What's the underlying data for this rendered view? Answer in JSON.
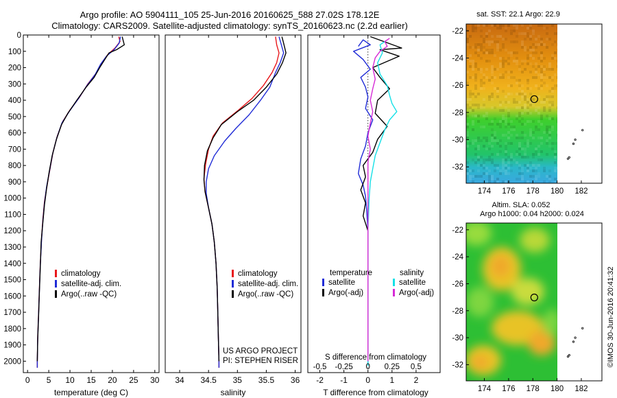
{
  "header": {
    "line1": "Argo profile: AO 5904111_105 25-Jun-2016 20160625_588 27.02S 178.12E",
    "line2": "Climatology: CARS2009. Satellite-adjusted climatology: synTS_20160623.nc (2.2d earlier)"
  },
  "credit": {
    "project": "US ARGO PROJECT",
    "pi": "PI: STEPHEN RISER",
    "imos": "©IMOS 30-Jun-2016 20:41:32"
  },
  "colors": {
    "climatology": "#e8161a",
    "satellite": "#1f2bd6",
    "argo": "#000000",
    "sal_satellite": "#13e0e6",
    "sal_argo": "#d62ad6"
  },
  "chart_data": [
    {
      "type": "line",
      "xlabel": "temperature (deg C)",
      "ylabel": "",
      "xlim": [
        -1,
        31
      ],
      "ylim": [
        2070,
        0
      ],
      "xticks": [
        0,
        5,
        10,
        15,
        20,
        25,
        30
      ],
      "yticks": [
        0,
        100,
        200,
        300,
        400,
        500,
        600,
        700,
        800,
        900,
        1000,
        1100,
        1200,
        1300,
        1400,
        1500,
        1600,
        1700,
        1800,
        1900,
        2000
      ],
      "legend": [
        "climatology",
        "satellite-adj. clim.",
        "Argo(..raw -QC)"
      ],
      "series": [
        {
          "name": "climatology",
          "color": "#e8161a",
          "points": [
            [
              21.5,
              10
            ],
            [
              21.8,
              40
            ],
            [
              20.6,
              80
            ],
            [
              18.9,
              120
            ],
            [
              17.5,
              170
            ],
            [
              16.3,
              230
            ],
            [
              14.2,
              300
            ],
            [
              12.3,
              380
            ],
            [
              10.0,
              460
            ],
            [
              8.3,
              530
            ],
            [
              7.0,
              620
            ],
            [
              6.0,
              720
            ],
            [
              5.3,
              820
            ],
            [
              4.6,
              920
            ],
            [
              4.0,
              1020
            ],
            [
              3.6,
              1130
            ],
            [
              3.3,
              1250
            ],
            [
              3.0,
              1400
            ],
            [
              2.8,
              1550
            ],
            [
              2.6,
              1700
            ],
            [
              2.4,
              1850
            ],
            [
              2.3,
              2000
            ],
            [
              2.3,
              2040
            ]
          ]
        },
        {
          "name": "satellite-adj. clim.",
          "color": "#1f2bd6",
          "points": [
            [
              21.9,
              10
            ],
            [
              21.6,
              50
            ],
            [
              20.4,
              90
            ],
            [
              18.6,
              130
            ],
            [
              17.2,
              180
            ],
            [
              16.0,
              240
            ],
            [
              14.0,
              310
            ],
            [
              12.0,
              390
            ],
            [
              9.8,
              470
            ],
            [
              8.1,
              540
            ],
            [
              6.9,
              630
            ],
            [
              5.9,
              730
            ],
            [
              5.2,
              830
            ],
            [
              4.5,
              930
            ],
            [
              4.0,
              1030
            ],
            [
              3.6,
              1140
            ],
            [
              3.3,
              1260
            ],
            [
              3.0,
              1410
            ],
            [
              2.8,
              1560
            ],
            [
              2.6,
              1710
            ],
            [
              2.4,
              1860
            ],
            [
              2.3,
              2000
            ],
            [
              2.3,
              2040
            ]
          ]
        },
        {
          "name": "Argo(..raw -QC)",
          "color": "#000000",
          "points": [
            [
              22.3,
              10
            ],
            [
              22.8,
              60
            ],
            [
              21.0,
              90
            ],
            [
              19.2,
              110
            ],
            [
              18.2,
              150
            ],
            [
              17.0,
              200
            ],
            [
              15.7,
              260
            ],
            [
              13.8,
              320
            ],
            [
              11.6,
              400
            ],
            [
              9.5,
              480
            ],
            [
              8.0,
              550
            ],
            [
              6.8,
              640
            ],
            [
              5.8,
              740
            ],
            [
              5.1,
              840
            ],
            [
              4.5,
              940
            ],
            [
              4.0,
              1040
            ],
            [
              3.6,
              1150
            ],
            [
              3.2,
              1270
            ],
            [
              3.0,
              1420
            ],
            [
              2.8,
              1570
            ],
            [
              2.6,
              1720
            ],
            [
              2.4,
              1870
            ],
            [
              2.3,
              2000
            ]
          ]
        }
      ]
    },
    {
      "type": "line",
      "xlabel": "salinity",
      "xlim": [
        33.75,
        36.1
      ],
      "ylim": [
        2070,
        0
      ],
      "xticks": [
        34,
        34.5,
        35,
        35.5,
        36
      ],
      "legend": [
        "climatology",
        "satellite-adj. clim.",
        "Argo(..raw -QC)"
      ],
      "series": [
        {
          "name": "climatology",
          "color": "#e8161a",
          "points": [
            [
              35.66,
              10
            ],
            [
              35.68,
              60
            ],
            [
              35.72,
              110
            ],
            [
              35.68,
              170
            ],
            [
              35.6,
              230
            ],
            [
              35.45,
              310
            ],
            [
              35.25,
              390
            ],
            [
              35.02,
              460
            ],
            [
              34.74,
              540
            ],
            [
              34.58,
              620
            ],
            [
              34.5,
              700
            ],
            [
              34.45,
              790
            ],
            [
              34.42,
              880
            ],
            [
              34.44,
              960
            ],
            [
              34.5,
              1060
            ],
            [
              34.56,
              1160
            ],
            [
              34.6,
              1270
            ],
            [
              34.63,
              1400
            ],
            [
              34.65,
              1550
            ],
            [
              34.66,
              1700
            ],
            [
              34.67,
              1850
            ],
            [
              34.68,
              2000
            ],
            [
              34.68,
              2040
            ]
          ]
        },
        {
          "name": "satellite-adj. clim.",
          "color": "#1f2bd6",
          "points": [
            [
              35.72,
              10
            ],
            [
              35.76,
              60
            ],
            [
              35.8,
              110
            ],
            [
              35.74,
              170
            ],
            [
              35.66,
              230
            ],
            [
              35.56,
              320
            ],
            [
              35.4,
              400
            ],
            [
              35.2,
              490
            ],
            [
              34.98,
              570
            ],
            [
              34.78,
              650
            ],
            [
              34.6,
              740
            ],
            [
              34.5,
              820
            ],
            [
              34.46,
              900
            ],
            [
              34.46,
              970
            ],
            [
              34.5,
              1060
            ],
            [
              34.56,
              1160
            ],
            [
              34.6,
              1270
            ],
            [
              34.63,
              1400
            ],
            [
              34.65,
              1550
            ],
            [
              34.66,
              1700
            ],
            [
              34.67,
              1850
            ],
            [
              34.68,
              2000
            ],
            [
              34.68,
              2040
            ]
          ]
        },
        {
          "name": "Argo(..raw -QC)",
          "color": "#000000",
          "points": [
            [
              35.77,
              10
            ],
            [
              35.8,
              50
            ],
            [
              35.84,
              110
            ],
            [
              35.78,
              170
            ],
            [
              35.68,
              240
            ],
            [
              35.5,
              320
            ],
            [
              35.28,
              400
            ],
            [
              35.0,
              470
            ],
            [
              34.72,
              550
            ],
            [
              34.58,
              630
            ],
            [
              34.48,
              710
            ],
            [
              34.43,
              800
            ],
            [
              34.42,
              890
            ],
            [
              34.44,
              960
            ],
            [
              34.5,
              1060
            ],
            [
              34.56,
              1160
            ],
            [
              34.6,
              1270
            ],
            [
              34.63,
              1400
            ],
            [
              34.65,
              1550
            ],
            [
              34.66,
              1700
            ],
            [
              34.67,
              1850
            ],
            [
              34.68,
              2000
            ]
          ]
        }
      ]
    },
    {
      "type": "line",
      "xlabel": "T difference from climatology",
      "top_label": "S difference from climatology",
      "xlim": [
        -2.5,
        3
      ],
      "ylim": [
        2070,
        0
      ],
      "xticks": [
        -2,
        -1,
        0,
        1,
        2
      ],
      "sticks_label": [
        "-0.5",
        "-0.25",
        "0",
        "0.25",
        "0.5"
      ],
      "sticks_at": [
        -2,
        -1,
        0,
        1,
        2
      ],
      "legend_groups": {
        "temperature": "temperature",
        "salinity": "salinity"
      },
      "legend": [
        "satellite",
        "Argo(-adj)",
        "satellite",
        "Argo(-adj)"
      ],
      "series": [
        {
          "name": "temperature satellite",
          "color": "#1f2bd6",
          "points": [
            [
              -0.4,
              70
            ],
            [
              -0.2,
              30
            ],
            [
              0.1,
              60
            ],
            [
              -0.6,
              100
            ],
            [
              -0.2,
              150
            ],
            [
              0.1,
              210
            ],
            [
              -0.3,
              260
            ],
            [
              -0.1,
              320
            ],
            [
              0.0,
              380
            ],
            [
              -0.1,
              450
            ],
            [
              0.2,
              520
            ],
            [
              0.0,
              600
            ],
            [
              -0.1,
              680
            ],
            [
              -0.3,
              760
            ],
            [
              -0.4,
              850
            ],
            [
              -0.2,
              920
            ],
            [
              -0.1,
              990
            ],
            [
              -0.05,
              1080
            ],
            [
              0,
              1200
            ],
            [
              0,
              1400
            ],
            [
              0,
              1700
            ],
            [
              0,
              2000
            ],
            [
              0,
              2030
            ]
          ]
        },
        {
          "name": "temperature Argo(-adj)",
          "color": "#000000",
          "points": [
            [
              0.1,
              10
            ],
            [
              1.4,
              80
            ],
            [
              0.5,
              90
            ],
            [
              1.3,
              130
            ],
            [
              0.2,
              200
            ],
            [
              0.5,
              260
            ],
            [
              0.9,
              330
            ],
            [
              0.4,
              400
            ],
            [
              0.3,
              480
            ],
            [
              0.8,
              560
            ],
            [
              0.4,
              640
            ],
            [
              0.2,
              720
            ],
            [
              -0.2,
              800
            ],
            [
              -0.1,
              870
            ],
            [
              -0.3,
              950
            ],
            [
              -0.1,
              1030
            ],
            [
              -0.2,
              1110
            ],
            [
              0,
              1200
            ],
            [
              0,
              1400
            ],
            [
              0,
              1700
            ],
            [
              0,
              2000
            ]
          ]
        },
        {
          "name": "salinity satellite",
          "color": "#13e0e6",
          "points": [
            [
              0.7,
              40
            ],
            [
              0.5,
              60
            ],
            [
              0.6,
              110
            ],
            [
              0.4,
              170
            ],
            [
              0.5,
              240
            ],
            [
              0.8,
              310
            ],
            [
              0.9,
              370
            ],
            [
              1.0,
              420
            ],
            [
              1.2,
              470
            ],
            [
              0.9,
              520
            ],
            [
              0.7,
              580
            ],
            [
              0.5,
              660
            ],
            [
              0.3,
              740
            ],
            [
              0.2,
              820
            ],
            [
              0.1,
              900
            ],
            [
              0.05,
              1000
            ],
            [
              0,
              1200
            ],
            [
              0,
              1500
            ],
            [
              0,
              1800
            ],
            [
              0,
              2000
            ],
            [
              0,
              2030
            ]
          ]
        },
        {
          "name": "salinity Argo(-adj)",
          "color": "#d62ad6",
          "points": [
            [
              0.9,
              20
            ],
            [
              0.7,
              40
            ],
            [
              0.8,
              70
            ],
            [
              0.5,
              100
            ],
            [
              0.3,
              140
            ],
            [
              0.2,
              200
            ],
            [
              0.3,
              270
            ],
            [
              0.2,
              330
            ],
            [
              0.1,
              400
            ],
            [
              0.2,
              470
            ],
            [
              0.1,
              540
            ],
            [
              0.0,
              620
            ],
            [
              0.1,
              700
            ],
            [
              0.0,
              780
            ],
            [
              0.0,
              860
            ],
            [
              0.0,
              960
            ],
            [
              0,
              1100
            ],
            [
              0,
              1400
            ],
            [
              0,
              1800
            ],
            [
              0,
              2000
            ]
          ]
        }
      ]
    },
    {
      "type": "heatmap",
      "title": "sat. SST: 22.1  Argo: 22.9",
      "xlim": [
        172.5,
        183.7
      ],
      "ylim": [
        -33.2,
        -21.5
      ],
      "xticks": [
        174,
        176,
        178,
        180,
        182
      ],
      "yticks": [
        -22,
        -24,
        -26,
        -28,
        -30,
        -32
      ],
      "marker": {
        "lon": 178.12,
        "lat": -27.02
      },
      "land_edge_lon": 180.0
    },
    {
      "type": "heatmap",
      "title": "Altim. SLA: 0.052",
      "subtitle": "Argo h1000: 0.04  h2000: 0.024",
      "xlim": [
        172.5,
        183.7
      ],
      "ylim": [
        -33.2,
        -21.5
      ],
      "xticks": [
        174,
        176,
        178,
        180,
        182
      ],
      "yticks": [
        -22,
        -24,
        -26,
        -28,
        -30,
        -32
      ],
      "marker": {
        "lon": 178.12,
        "lat": -27.02
      },
      "land_edge_lon": 180.0
    }
  ]
}
